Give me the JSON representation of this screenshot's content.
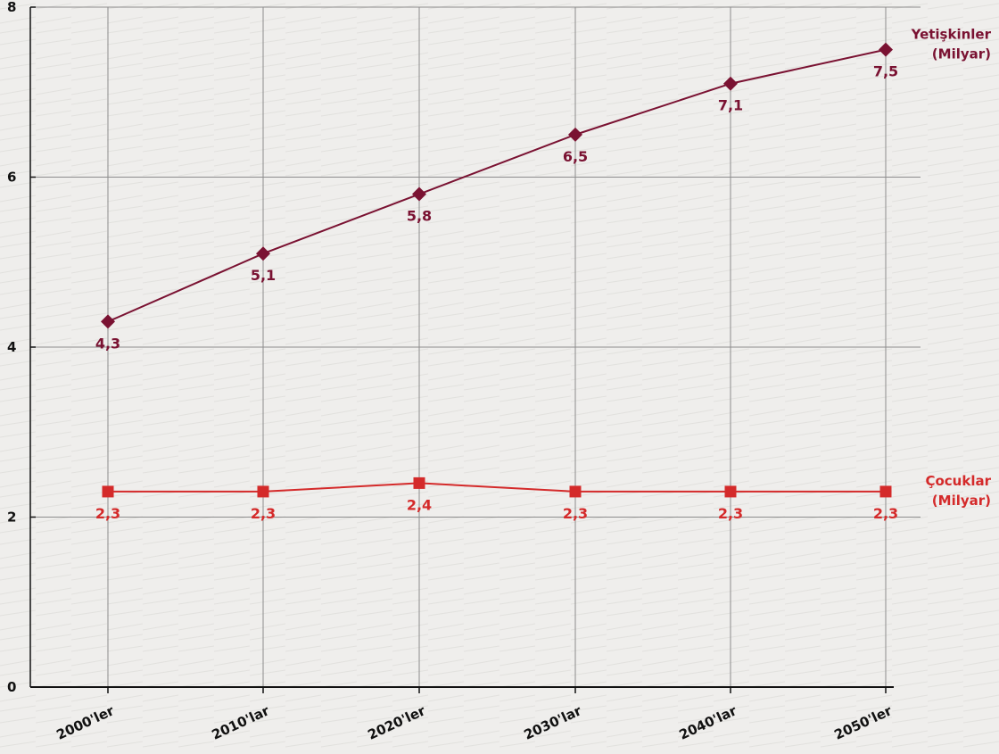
{
  "chart_data": {
    "type": "line",
    "categories": [
      "2000'ler",
      "2010'lar",
      "2020'ler",
      "2030'lar",
      "2040'lar",
      "2050'ler"
    ],
    "ylim": [
      0,
      8
    ],
    "y_ticks": [
      "0",
      "2",
      "4",
      "6",
      "8"
    ],
    "grid": true,
    "series": [
      {
        "name_lines": [
          "Yetişkinler",
          "(Milyar)"
        ],
        "values": [
          4.3,
          5.1,
          5.8,
          6.5,
          7.1,
          7.5
        ],
        "value_labels": [
          "4,3",
          "5,1",
          "5,8",
          "6,5",
          "7,1",
          "7,5"
        ],
        "color": "#7a1232",
        "marker": "diamond"
      },
      {
        "name_lines": [
          "Çocuklar",
          "(Milyar)"
        ],
        "values": [
          2.3,
          2.3,
          2.4,
          2.3,
          2.3,
          2.3
        ],
        "value_labels": [
          "2,3",
          "2,3",
          "2,4",
          "2,3",
          "2,3",
          "2,3"
        ],
        "color": "#d42a2a",
        "marker": "square"
      }
    ]
  }
}
